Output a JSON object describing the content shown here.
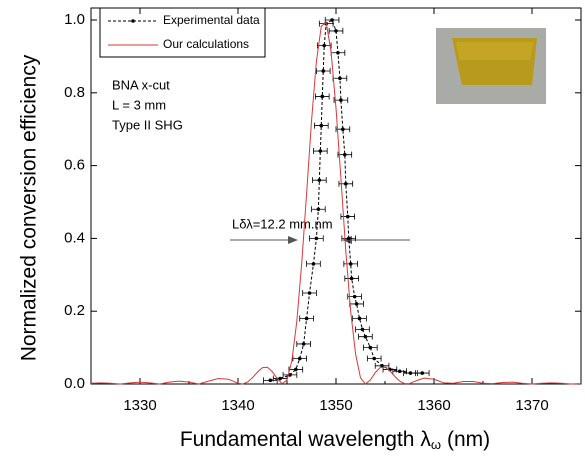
{
  "chart_data": {
    "type": "line",
    "y_label": "Normalized conversion efficiency",
    "x_label": {
      "text": "Fundamental wavelength λ",
      "subscript": "ω",
      "unit": "(nm)"
    },
    "annotations": [
      "BNA x-cut",
      "L = 3 mm",
      "Type II SHG",
      "Lδλ=12.2 mm.nm"
    ],
    "xlim": [
      1325,
      1375
    ],
    "xticks": [
      1330,
      1340,
      1350,
      1360,
      1370
    ],
    "xticks_minor": [
      1325,
      1335,
      1345,
      1355,
      1365,
      1375
    ],
    "ylim": [
      0,
      1.033
    ],
    "yticks": [
      {
        "value": 0,
        "label": "0.0"
      },
      0.2,
      0.4,
      0.6,
      0.8,
      {
        "value": 1,
        "label": "1.0"
      }
    ],
    "series": [
      {
        "name": "Experimental data",
        "color": "#000000",
        "dashed": true,
        "markers": true,
        "xerr": 0.7,
        "x": [
          1343.3,
          1344.3,
          1345.3,
          1345.9,
          1346.3,
          1346.7,
          1347.0,
          1347.3,
          1347.7,
          1348.0,
          1348.2,
          1348.3,
          1348.4,
          1348.5,
          1348.6,
          1348.7,
          1348.8,
          1349.0,
          1349.6,
          1350.0,
          1350.2,
          1350.4,
          1350.5,
          1350.7,
          1350.9,
          1351.0,
          1351.2,
          1351.3,
          1351.5,
          1351.6,
          1351.9,
          1352.1,
          1352.4,
          1352.7,
          1353.0,
          1353.5,
          1353.9,
          1354.7,
          1355.5,
          1356.5,
          1357.6,
          1358.8
        ],
        "values": [
          0.01,
          0.015,
          0.025,
          0.04,
          0.07,
          0.11,
          0.18,
          0.25,
          0.33,
          0.4,
          0.48,
          0.56,
          0.64,
          0.71,
          0.79,
          0.86,
          0.93,
          0.99,
          1.0,
          0.97,
          0.91,
          0.84,
          0.78,
          0.7,
          0.63,
          0.55,
          0.46,
          0.4,
          0.33,
          0.29,
          0.24,
          0.22,
          0.18,
          0.15,
          0.13,
          0.1,
          0.07,
          0.05,
          0.04,
          0.035,
          0.03,
          0.03
        ]
      },
      {
        "name": "Our calculations",
        "color": "#d9383a",
        "dashed": false,
        "markers": false,
        "x": [
          1325,
          1326,
          1327,
          1328,
          1329,
          1330,
          1331,
          1332,
          1333,
          1334,
          1335,
          1336,
          1337,
          1338,
          1339,
          1339.5,
          1340,
          1340.5,
          1341,
          1341.5,
          1342,
          1342.5,
          1343,
          1343.5,
          1344,
          1344.5,
          1345,
          1345.5,
          1346,
          1346.5,
          1347,
          1347.5,
          1348,
          1348.5,
          1349,
          1349.5,
          1350,
          1350.5,
          1351,
          1351.5,
          1352,
          1352.5,
          1353,
          1353.5,
          1354,
          1354.5,
          1355,
          1355.5,
          1356,
          1356.5,
          1357,
          1357.5,
          1358,
          1358.5,
          1359,
          1360,
          1361,
          1362,
          1363,
          1364,
          1365,
          1366,
          1367,
          1368,
          1369,
          1370,
          1371,
          1372,
          1373,
          1374,
          1375
        ],
        "values": [
          0.002,
          0.003,
          0.002,
          0.0,
          0.003,
          0.005,
          0.003,
          0.0,
          0.005,
          0.008,
          0.005,
          0.0,
          0.008,
          0.015,
          0.013,
          0.008,
          0.002,
          0.0,
          0.006,
          0.018,
          0.033,
          0.045,
          0.046,
          0.034,
          0.015,
          0.001,
          0.011,
          0.064,
          0.172,
          0.331,
          0.523,
          0.722,
          0.886,
          0.983,
          0.993,
          0.912,
          0.758,
          0.566,
          0.365,
          0.199,
          0.082,
          0.017,
          0.0,
          0.011,
          0.031,
          0.045,
          0.046,
          0.036,
          0.021,
          0.008,
          0.001,
          0.001,
          0.007,
          0.012,
          0.016,
          0.013,
          0.003,
          0.002,
          0.007,
          0.007,
          0.002,
          0.001,
          0.004,
          0.005,
          0.002,
          0.0,
          0.002,
          0.003,
          0.002,
          0.0,
          0.001
        ]
      }
    ]
  }
}
